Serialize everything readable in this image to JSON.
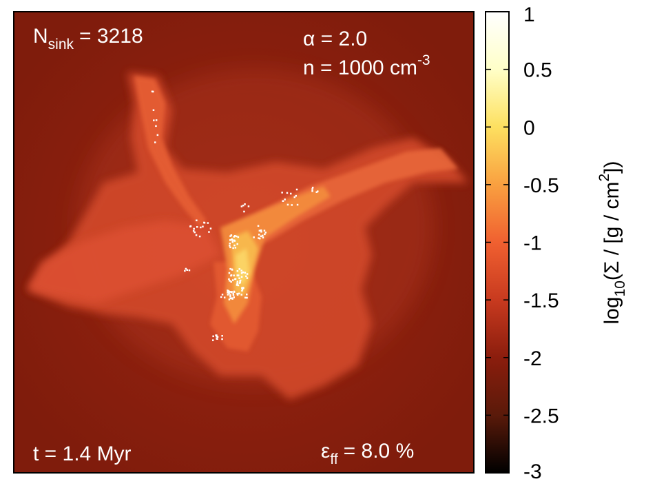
{
  "chart_data": {
    "type": "heatmap",
    "description_labels": {
      "n_sink": {
        "prefix": "N",
        "sub": "sink",
        "eq": "= 3218"
      },
      "alpha": "α = 2.0",
      "density": {
        "base": "n = 1000 cm",
        "sup": "-3"
      },
      "time": "t = 1.4 Myr",
      "efficiency": {
        "prefix": "ε",
        "sub": "ff",
        "eq": "= 8.0 %"
      }
    },
    "colorbar": {
      "label": {
        "pre": "log",
        "sub": "10",
        "mid": "(Σ / [g / cm",
        "sup": "2",
        "post": "])"
      },
      "range": [
        -3,
        1
      ],
      "ticks": [
        "1",
        "0.5",
        "0",
        "-0.5",
        "-1",
        "-1.5",
        "-2",
        "-2.5",
        "-3"
      ],
      "tick_values": [
        1,
        0.5,
        0,
        -0.5,
        -1,
        -1.5,
        -2,
        -2.5,
        -3
      ],
      "colors": [
        "#000000",
        "#5a1a0a",
        "#8b1d0d",
        "#c83a1f",
        "#f06030",
        "#f9a040",
        "#fde060",
        "#ffffc8",
        "#ffffff"
      ]
    },
    "sink_count": 3218,
    "alpha": 2.0,
    "n_cm3": 1000,
    "t_myr": 1.4,
    "eps_ff_percent": 8.0
  }
}
